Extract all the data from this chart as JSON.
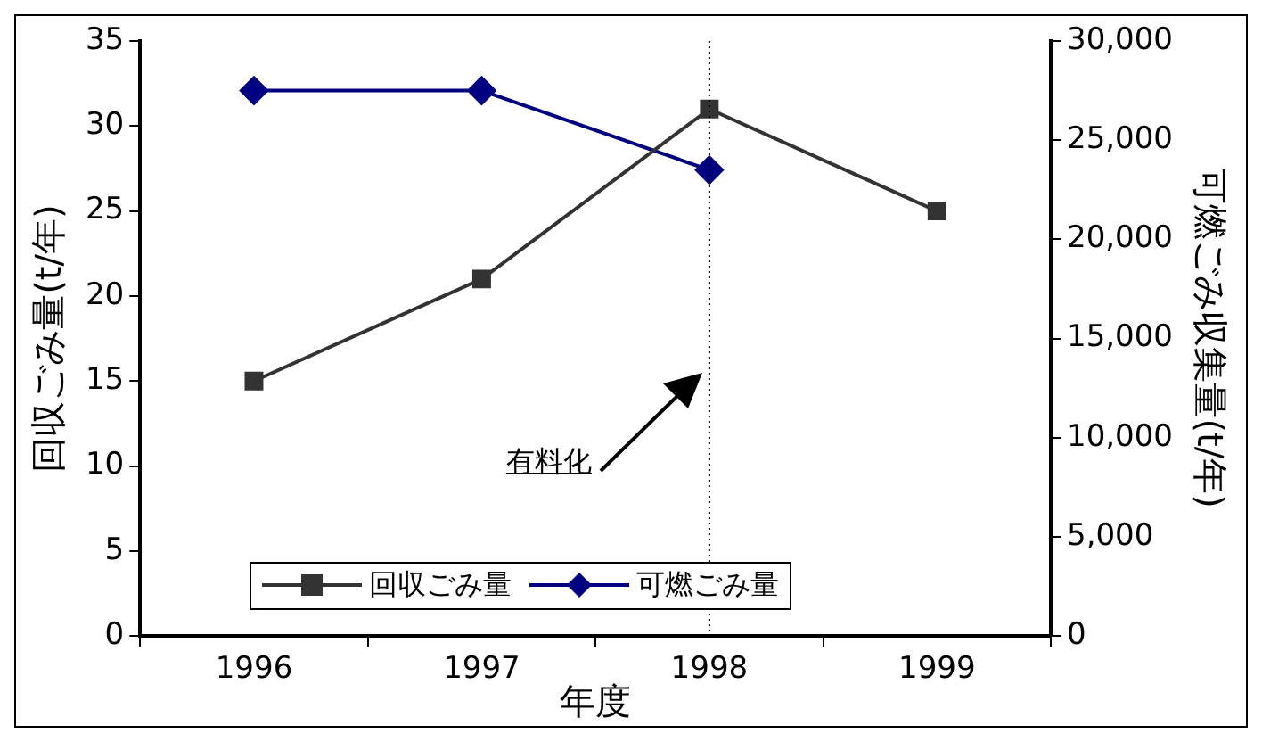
{
  "chart_data": {
    "type": "line",
    "xlabel": "年度",
    "ylabel": "回収ごみ量(t/年)",
    "y2label": "可燃ごみ収集量(t/年)",
    "categories": [
      "1996",
      "1997",
      "1998",
      "1999"
    ],
    "series": [
      {
        "name": "回収ごみ量",
        "color": "#333333",
        "values": [
          15,
          21,
          31,
          25
        ],
        "marker": "square"
      },
      {
        "name": "可燃ごみ量",
        "color": "#000080",
        "values": [
          27500,
          27500,
          23500,
          null
        ],
        "axis": "y2",
        "marker": "diamond"
      }
    ],
    "ylim": [
      0,
      35
    ],
    "yticks": [
      0,
      5,
      10,
      15,
      20,
      25,
      30,
      35
    ],
    "y2lim": [
      0,
      30000
    ],
    "y2ticks": [
      {
        "value": 0,
        "label": "0"
      },
      {
        "value": 5000,
        "label": "5,000"
      },
      {
        "value": 10000,
        "label": "10,000"
      },
      {
        "value": 15000,
        "label": "15,000"
      },
      {
        "value": 20000,
        "label": "20,000"
      },
      {
        "value": 25000,
        "label": "25,000"
      },
      {
        "value": 30000,
        "label": "30,000"
      }
    ],
    "ref_lines": [
      {
        "axis": "x",
        "value": "1998",
        "line_style": "dotted",
        "color": "#000000"
      }
    ],
    "annotations": [
      "有料化"
    ],
    "grid": false,
    "legend": "bottom",
    "line_style": "solid"
  }
}
